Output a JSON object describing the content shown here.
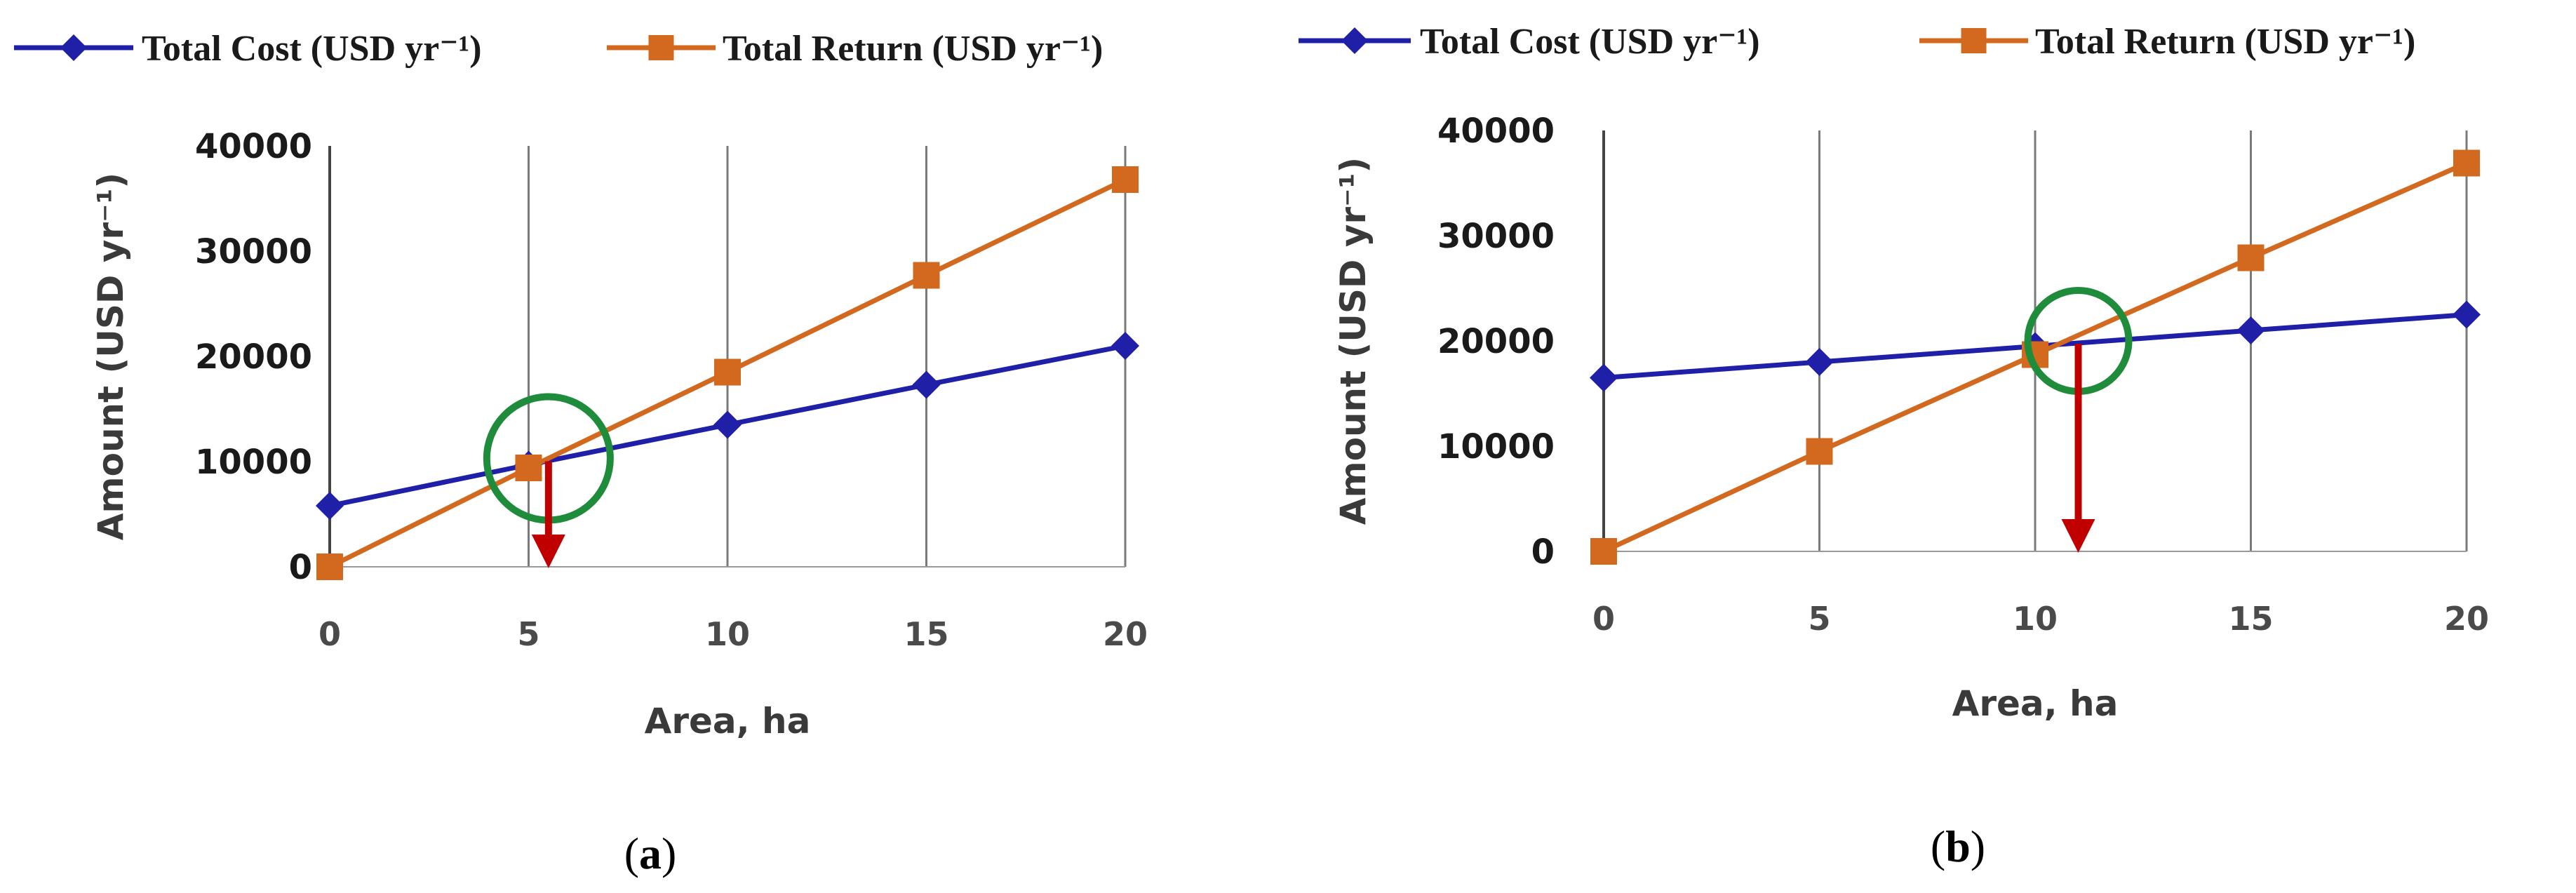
{
  "chart_data": [
    {
      "type": "line",
      "panel_label": "a",
      "x": [
        0,
        5,
        10,
        15,
        20
      ],
      "xticks": [
        "0",
        "5",
        "10",
        "15",
        "20"
      ],
      "yticks": [
        "0",
        "10000",
        "20000",
        "30000",
        "40000"
      ],
      "xlim": [
        0,
        20
      ],
      "ylim": [
        0,
        40000
      ],
      "xlabel": "Area, ha",
      "ylabel": "Amount (USD yr⁻¹)",
      "grid": "vertical",
      "legend": "top",
      "series": [
        {
          "name": "Total Cost (USD yr⁻¹)",
          "color": "#1f1fa8",
          "marker": "diamond",
          "values": [
            5800,
            9700,
            13500,
            17300,
            21000
          ]
        },
        {
          "name": "Total Return (USD yr⁻¹)",
          "color": "#d2691e",
          "marker": "square",
          "values": [
            0,
            9400,
            18500,
            27700,
            36800
          ]
        }
      ],
      "annotation": {
        "type": "break-even",
        "x": 5.5,
        "y": 10300,
        "circle_color": "#1e8c3a",
        "arrow_color": "#c00000"
      }
    },
    {
      "type": "line",
      "panel_label": "b",
      "x": [
        0,
        5,
        10,
        15,
        20
      ],
      "xticks": [
        "0",
        "5",
        "10",
        "15",
        "20"
      ],
      "yticks": [
        "0",
        "10000",
        "20000",
        "30000",
        "40000"
      ],
      "xlim": [
        0,
        20
      ],
      "ylim": [
        0,
        40000
      ],
      "xlabel": "Area, ha",
      "ylabel": "Amount (USD yr⁻¹)",
      "grid": "vertical",
      "legend": "top",
      "series": [
        {
          "name": "Total Cost (USD yr⁻¹)",
          "color": "#1f1fa8",
          "marker": "diamond",
          "values": [
            16500,
            18000,
            19500,
            21000,
            22500
          ]
        },
        {
          "name": "Total Return (USD yr⁻¹)",
          "color": "#d2691e",
          "marker": "square",
          "values": [
            0,
            9500,
            18700,
            27900,
            36900
          ]
        }
      ],
      "annotation": {
        "type": "break-even",
        "x": 11,
        "y": 20000,
        "circle_color": "#1e8c3a",
        "arrow_color": "#c00000"
      }
    }
  ]
}
